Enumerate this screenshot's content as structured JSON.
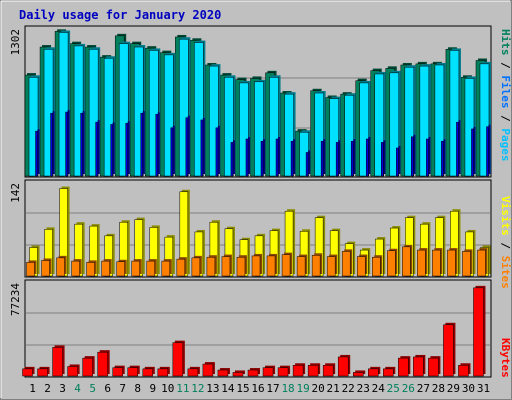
{
  "chart_data": [
    {
      "type": "bar",
      "title": "Daily usage for January 2020",
      "categories": [
        "1",
        "2",
        "3",
        "4",
        "5",
        "6",
        "7",
        "8",
        "9",
        "10",
        "11",
        "12",
        "13",
        "14",
        "15",
        "16",
        "17",
        "18",
        "19",
        "20",
        "21",
        "22",
        "23",
        "24",
        "25",
        "26",
        "27",
        "28",
        "29",
        "30",
        "31"
      ],
      "weekend_days": [
        "4",
        "5",
        "11",
        "12",
        "18",
        "19",
        "25",
        "26"
      ],
      "ymax_label": "1302",
      "ylim": [
        0,
        1302
      ],
      "ylabel_parts": [
        "Hits",
        "Files",
        "Pages"
      ],
      "series": [
        {
          "name": "Hits",
          "color": "#00805c",
          "values": [
            900,
            1150,
            1290,
            1180,
            1150,
            1060,
            1250,
            1180,
            1140,
            1100,
            1240,
            1210,
            990,
            900,
            860,
            870,
            920,
            740,
            400,
            760,
            700,
            730,
            850,
            940,
            960,
            990,
            1000,
            1000,
            1130,
            880,
            1030
          ]
        },
        {
          "name": "Files",
          "color": "#00e0ff",
          "values": [
            880,
            1130,
            1280,
            1160,
            1130,
            1050,
            1180,
            1150,
            1120,
            1080,
            1220,
            1190,
            980,
            880,
            830,
            840,
            880,
            730,
            390,
            740,
            690,
            720,
            830,
            910,
            920,
            970,
            980,
            990,
            1120,
            870,
            1000
          ]
        },
        {
          "name": "Pages",
          "color": "#0000e0",
          "values": [
            400,
            560,
            570,
            560,
            480,
            460,
            470,
            560,
            550,
            430,
            520,
            500,
            430,
            300,
            330,
            310,
            330,
            310,
            210,
            310,
            300,
            310,
            330,
            300,
            250,
            350,
            330,
            310,
            480,
            420,
            440
          ]
        }
      ]
    },
    {
      "type": "bar",
      "ymax_label": "142",
      "ylim": [
        0,
        142
      ],
      "ylabel_parts": [
        "Visits",
        "Sites"
      ],
      "series": [
        {
          "name": "Visits",
          "color": "#ffff00",
          "values": [
            44,
            72,
            135,
            80,
            77,
            62,
            83,
            87,
            75,
            60,
            130,
            68,
            83,
            73,
            56,
            62,
            70,
            100,
            69,
            90,
            70,
            50,
            40,
            57,
            74,
            90,
            80,
            90,
            100,
            68,
            44
          ]
        },
        {
          "name": "Sites",
          "color": "#ff8000",
          "values": [
            21,
            24,
            28,
            23,
            21,
            23,
            22,
            23,
            23,
            23,
            26,
            28,
            29,
            30,
            29,
            31,
            31,
            33,
            30,
            32,
            30,
            38,
            30,
            29,
            39,
            45,
            40,
            40,
            40,
            38,
            40
          ]
        }
      ]
    },
    {
      "type": "bar",
      "ymax_label": "77234",
      "ylim": [
        0,
        77234
      ],
      "ylabel_parts": [
        "KBytes"
      ],
      "series": [
        {
          "name": "KBytes",
          "color": "#ff0000",
          "values": [
            6000,
            6000,
            24000,
            8000,
            15000,
            20000,
            7000,
            7000,
            6000,
            6000,
            28000,
            6000,
            10000,
            5000,
            3000,
            5000,
            7000,
            7000,
            9000,
            9000,
            9000,
            16000,
            3000,
            6000,
            6000,
            15000,
            16000,
            15000,
            43000,
            9000,
            74000
          ]
        }
      ]
    }
  ]
}
